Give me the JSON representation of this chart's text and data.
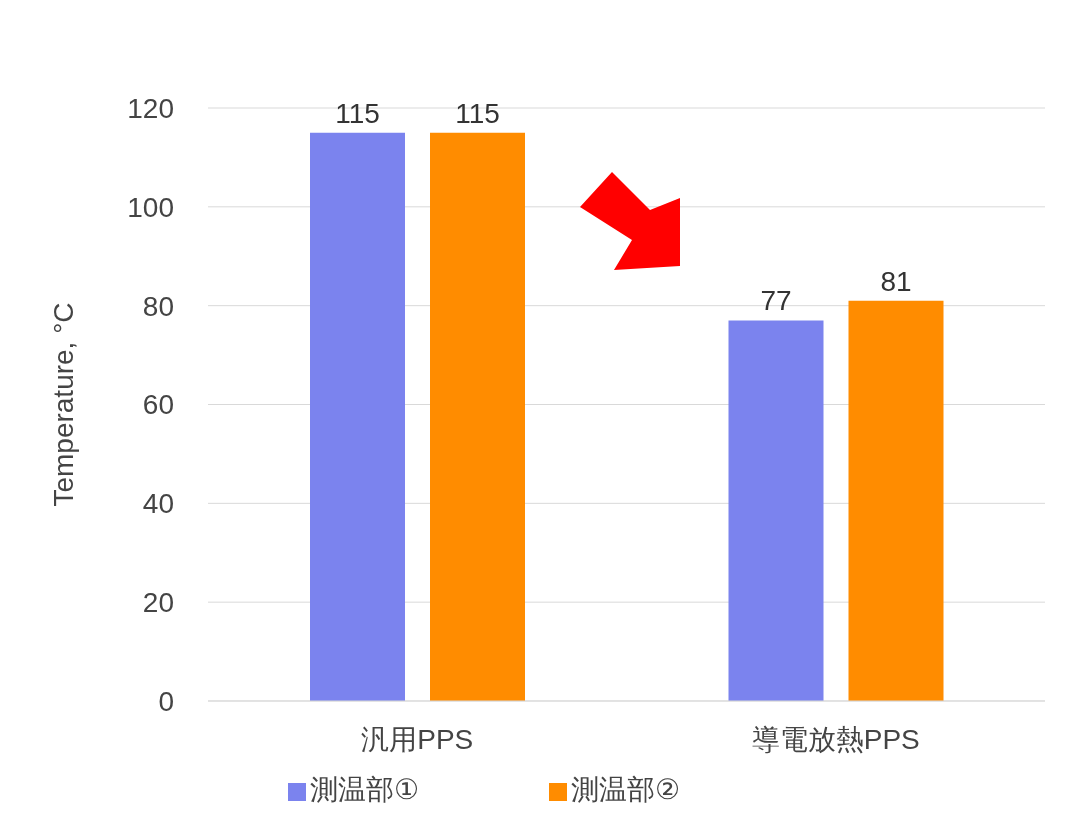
{
  "chart_data": {
    "type": "bar",
    "categories": [
      "汎用PPS",
      "導電放熱PPS"
    ],
    "ylabel": "Temperature, °C",
    "series": [
      {
        "name": "測温部①",
        "color": "#7b83ee",
        "values": [
          115,
          77
        ]
      },
      {
        "name": "測温部②",
        "color": "#ff8c00",
        "values": [
          115,
          81
        ]
      }
    ],
    "ylim": [
      0,
      120
    ],
    "yticks": [
      0,
      20,
      40,
      60,
      80,
      100,
      120
    ],
    "grid": "y",
    "legend": "bottom",
    "data_labels": true
  }
}
